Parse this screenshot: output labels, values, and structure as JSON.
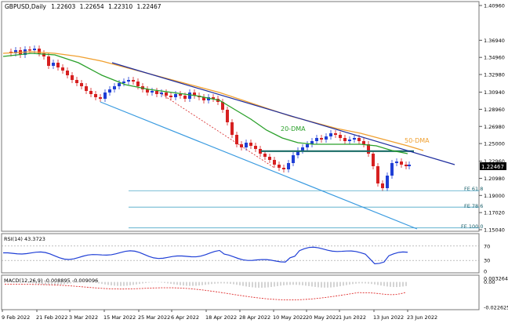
{
  "header": {
    "symbol": "GBPUSD,Daily",
    "open": "1.22603",
    "high": "1.22654",
    "low": "1.22310",
    "close": "1.22467"
  },
  "colors": {
    "bull": "#1f3fd6",
    "bear": "#d62020",
    "dma20": "#2aa02a",
    "dma50": "#f0a030",
    "trend": "#1e2d9e",
    "channel": "#3a9be0",
    "support": "#1a6b66",
    "fib": "#4aa6c8",
    "rsi": "#1f3fd6",
    "macd_signal": "#e03030",
    "macd_hist": "#b8b8b8",
    "grid_dash": "#999999"
  },
  "chart_data": [
    {
      "type": "line",
      "panel": "price",
      "y_ticks": [
        "1.40960",
        "1.36940",
        "1.34960",
        "1.32980",
        "1.30940",
        "1.28960",
        "1.26980",
        "1.25000",
        "1.22960",
        "1.20980",
        "1.19000",
        "1.17020",
        "1.15040"
      ],
      "ylim": [
        1.1504,
        1.4096
      ],
      "price_tag": "1.22467",
      "annotations": {
        "dma20": "20-DMA",
        "dma50": "50-DMA",
        "fib_618": "FE 61.8",
        "fib_786": "FE 78.6",
        "fib_100": "FE 100.0"
      },
      "levels": {
        "fib_618": 1.1955,
        "fib_786": 1.1765,
        "fib_100": 1.1525,
        "support": 1.2412
      }
    },
    {
      "type": "line",
      "panel": "rsi",
      "label": "RSI(14) 43.3723",
      "y_ticks": [
        "70",
        "30",
        "0"
      ],
      "ylim": [
        0,
        100
      ],
      "levels": [
        70,
        30
      ]
    },
    {
      "type": "bar",
      "panel": "macd",
      "label": "MACD(12,26,9) -0.008895 -0.009096",
      "y_ticks": [
        "0.003264",
        "0.00",
        "-0.022625"
      ],
      "ylim": [
        -0.022625,
        0.003264
      ]
    }
  ],
  "x_axis": {
    "labels": [
      "9 Feb 2022",
      "21 Feb 2022",
      "3 Mar 2022",
      "15 Mar 2022",
      "25 Mar 2022",
      "6 Apr 2022",
      "18 Apr 2022",
      "28 Apr 2022",
      "10 May 2022",
      "20 May 2022",
      "1 Jun 2022",
      "13 Jun 2022",
      "23 Jun 2022"
    ]
  }
}
